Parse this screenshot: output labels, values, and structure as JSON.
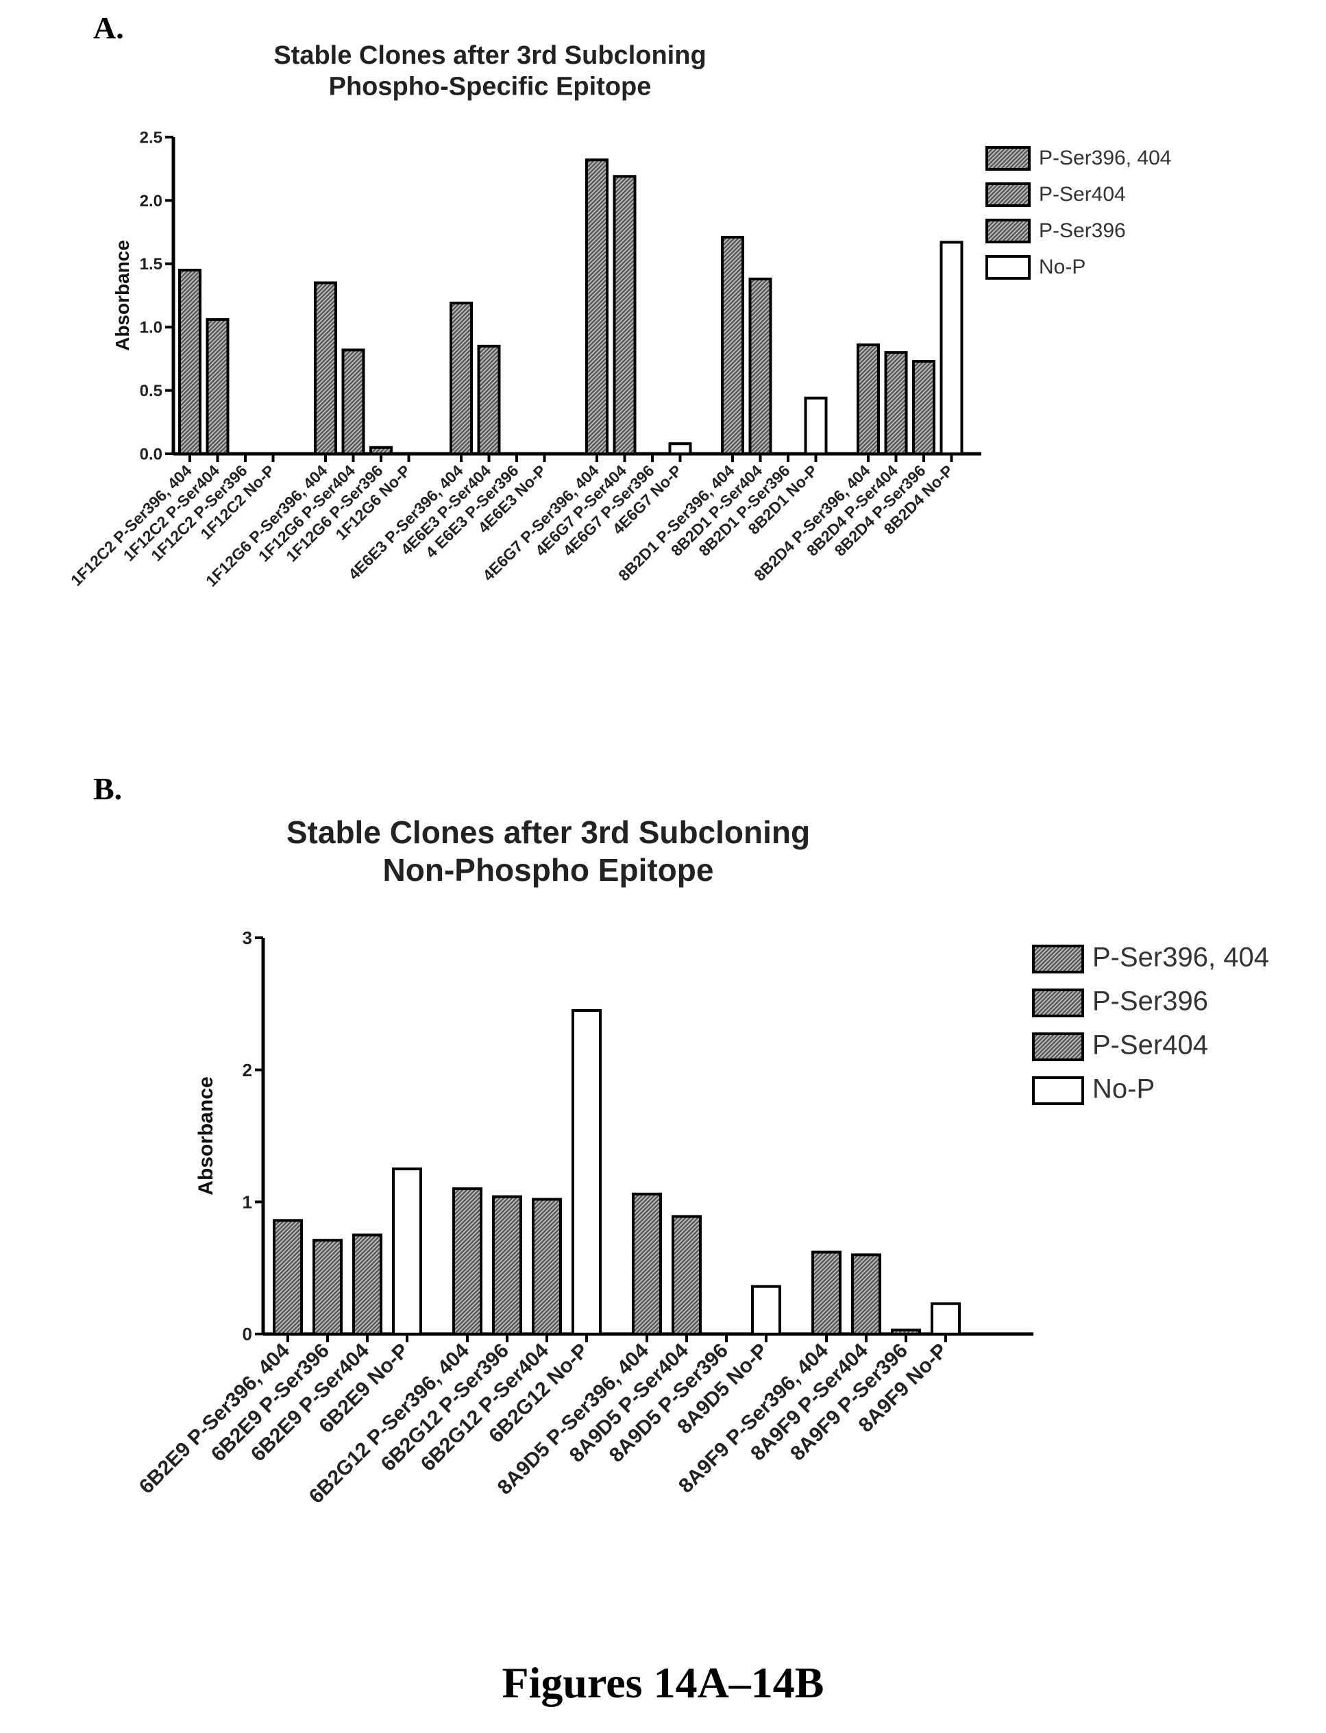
{
  "figure": {
    "caption": "Figures 14A–14B"
  },
  "chart_data": [
    {
      "panel_label": "A.",
      "type": "bar",
      "title": "Stable Clones after 3rd Subcloning",
      "subtitle": "Phospho-Specific Epitope",
      "xlabel": "",
      "ylabel": "Absorbance",
      "ylim": [
        0,
        2.5
      ],
      "yticks": [
        "0.0",
        "0.5",
        "1.0",
        "1.5",
        "2.0",
        "2.5"
      ],
      "grid": false,
      "legend_position": "top-right",
      "legend": [
        "P-Ser396, 404",
        "P-Ser404",
        "P-Ser396",
        "No-P"
      ],
      "series_styles": {
        "P-Ser396, 404": "hatch",
        "P-Ser404": "hatch",
        "P-Ser396": "hatch",
        "No-P": "open"
      },
      "groups": [
        {
          "clone": "1F12C2",
          "labels": [
            "1F12C2 P-Ser396, 404",
            "1F12C2 P-Ser404",
            "1F12C2 P-Ser396",
            "1F12C2 No-P"
          ],
          "values": [
            1.45,
            1.06,
            0.0,
            0.0
          ]
        },
        {
          "clone": "1F12G6",
          "labels": [
            "1F12G6 P-Ser396, 404",
            "1F12G6 P-Ser404",
            "1F12G6 P-Ser396",
            "1F12G6 No-P"
          ],
          "values": [
            1.35,
            0.82,
            0.05,
            0.0
          ]
        },
        {
          "clone": "4E6E3",
          "labels": [
            "4E6E3 P-Ser396, 404",
            "4E6E3 P-Ser404",
            "4 E6E3 P-Ser396",
            "4E6E3 No-P"
          ],
          "values": [
            1.19,
            0.85,
            0.0,
            0.0
          ]
        },
        {
          "clone": "4E6G7",
          "labels": [
            "4E6G7 P-Ser396, 404",
            "4E6G7 P-Ser404",
            "4E6G7 P-Ser396",
            "4E6G7 No-P"
          ],
          "values": [
            2.32,
            2.19,
            0.0,
            0.08
          ]
        },
        {
          "clone": "8B2D1",
          "labels": [
            "8B2D1 P-Ser396, 404",
            "8B2D1 P-Ser404",
            "8B2D1 P-Ser396",
            "8B2D1 No-P"
          ],
          "values": [
            1.71,
            1.38,
            0.0,
            0.44
          ]
        },
        {
          "clone": "8B2D4",
          "labels": [
            "8B2D4 P-Ser396, 404",
            "8B2D4 P-Ser404",
            "8B2D4 P-Ser396",
            "8B2D4 No-P"
          ],
          "values": [
            0.86,
            0.8,
            0.73,
            1.67
          ]
        }
      ]
    },
    {
      "panel_label": "B.",
      "type": "bar",
      "title": "Stable Clones after 3rd Subcloning",
      "subtitle": "Non-Phospho Epitope",
      "xlabel": "",
      "ylabel": "Absorbance",
      "ylim": [
        0,
        3
      ],
      "yticks": [
        "0",
        "1",
        "2",
        "3"
      ],
      "grid": false,
      "legend_position": "top-right",
      "legend": [
        "P-Ser396, 404",
        "P-Ser396",
        "P-Ser404",
        "No-P"
      ],
      "series_styles": {
        "P-Ser396, 404": "hatch",
        "P-Ser396": "hatch",
        "P-Ser404": "hatch",
        "No-P": "open"
      },
      "groups": [
        {
          "clone": "6B2E9",
          "labels": [
            "6B2E9 P-Ser396, 404",
            "6B2E9 P-Ser396",
            "6B2E9 P-Ser404",
            "6B2E9 No-P"
          ],
          "values": [
            0.86,
            0.71,
            0.75,
            1.25
          ]
        },
        {
          "clone": "6B2G12",
          "labels": [
            "6B2G12 P-Ser396, 404",
            "6B2G12 P-Ser396",
            "6B2G12 P-Ser404",
            "6B2G12 No-P"
          ],
          "values": [
            1.1,
            1.04,
            1.02,
            2.45
          ]
        },
        {
          "clone": "8A9D5",
          "labels": [
            "8A9D5 P-Ser396, 404",
            "8A9D5 P-Ser404",
            "8A9D5 P-Ser396",
            "8A9D5 No-P"
          ],
          "values": [
            1.06,
            0.89,
            0.0,
            0.36
          ]
        },
        {
          "clone": "8A9F9",
          "labels": [
            "8A9F9 P-Ser396, 404",
            "8A9F9 P-Ser404",
            "8A9F9 P-Ser396",
            "8A9F9 No-P"
          ],
          "values": [
            0.62,
            0.6,
            0.03,
            0.23
          ]
        }
      ]
    }
  ]
}
